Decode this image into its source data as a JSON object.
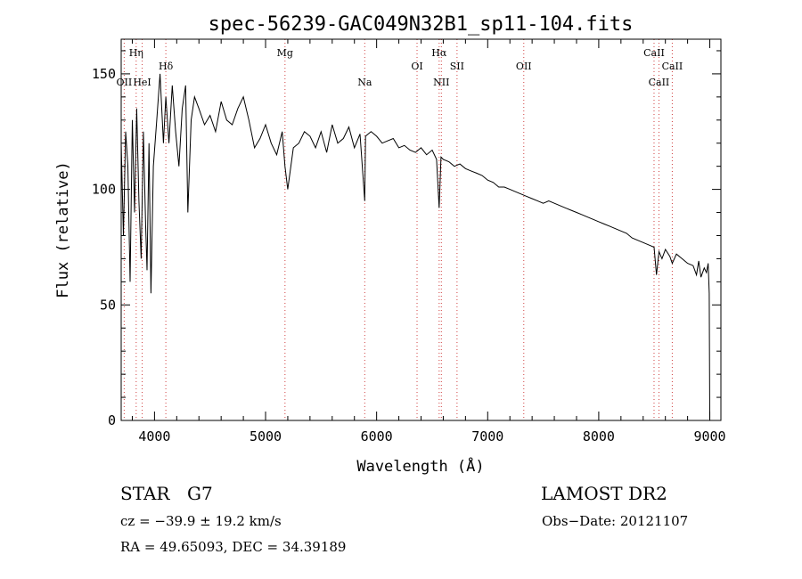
{
  "chart_data": {
    "type": "line",
    "title": "spec-56239-GAC049N32B1_sp11-104.fits",
    "xlabel": "Wavelength (Å)",
    "ylabel": "Flux (relative)",
    "xlim": [
      3700,
      9100
    ],
    "ylim": [
      0,
      165
    ],
    "xticks": [
      4000,
      5000,
      6000,
      7000,
      8000,
      9000
    ],
    "yticks": [
      0,
      50,
      100,
      150
    ],
    "grid": false,
    "series": [
      {
        "x": [
          3700,
          3720,
          3740,
          3760,
          3780,
          3800,
          3820,
          3840,
          3860,
          3880,
          3900,
          3920,
          3933,
          3950,
          3968,
          3990,
          4020,
          4050,
          4080,
          4102,
          4130,
          4160,
          4190,
          4220,
          4250,
          4280,
          4300,
          4330,
          4360,
          4400,
          4450,
          4500,
          4550,
          4600,
          4650,
          4700,
          4750,
          4800,
          4850,
          4900,
          4950,
          5000,
          5050,
          5100,
          5150,
          5175,
          5200,
          5250,
          5300,
          5350,
          5400,
          5450,
          5500,
          5550,
          5600,
          5650,
          5700,
          5750,
          5800,
          5850,
          5893,
          5900,
          5950,
          6000,
          6050,
          6100,
          6150,
          6200,
          6250,
          6300,
          6350,
          6400,
          6450,
          6500,
          6540,
          6563,
          6580,
          6600,
          6650,
          6700,
          6750,
          6800,
          6850,
          6900,
          6950,
          7000,
          7050,
          7100,
          7150,
          7200,
          7250,
          7300,
          7350,
          7400,
          7450,
          7500,
          7550,
          7600,
          7650,
          7700,
          7750,
          7800,
          7850,
          7900,
          7950,
          8000,
          8050,
          8100,
          8150,
          8200,
          8250,
          8300,
          8350,
          8400,
          8450,
          8498,
          8520,
          8542,
          8570,
          8600,
          8640,
          8662,
          8700,
          8750,
          8800,
          8850,
          8880,
          8900,
          8920,
          8950,
          8970,
          8985,
          8995,
          9000
        ],
        "y": [
          120,
          80,
          125,
          110,
          60,
          130,
          90,
          135,
          95,
          70,
          125,
          85,
          65,
          120,
          55,
          110,
          130,
          150,
          120,
          140,
          120,
          145,
          125,
          110,
          135,
          145,
          90,
          130,
          140,
          135,
          128,
          132,
          125,
          138,
          130,
          128,
          135,
          140,
          130,
          118,
          122,
          128,
          120,
          115,
          125,
          110,
          100,
          118,
          120,
          125,
          123,
          118,
          125,
          116,
          128,
          120,
          122,
          127,
          118,
          124,
          95,
          123,
          125,
          123,
          120,
          121,
          122,
          118,
          119,
          117,
          116,
          118,
          115,
          117,
          113,
          92,
          114,
          113,
          112,
          110,
          111,
          109,
          108,
          107,
          106,
          104,
          103,
          101,
          101,
          100,
          99,
          98,
          97,
          96,
          95,
          94,
          95,
          94,
          93,
          92,
          91,
          90,
          89,
          88,
          87,
          86,
          85,
          84,
          83,
          82,
          81,
          79,
          78,
          77,
          76,
          75,
          63,
          73,
          70,
          74,
          71,
          68,
          72,
          70,
          68,
          67,
          63,
          69,
          62,
          66,
          64,
          68,
          55,
          0
        ]
      }
    ],
    "lines": [
      {
        "label": "Hη",
        "x": 3835,
        "row": 0
      },
      {
        "label": "OII",
        "x": 3727,
        "row": 2
      },
      {
        "label": "HeI",
        "x": 3889,
        "row": 2
      },
      {
        "label": "Hδ",
        "x": 4102,
        "row": 1
      },
      {
        "label": "Mg",
        "x": 5175,
        "row": 0
      },
      {
        "label": "Na",
        "x": 5893,
        "row": 2
      },
      {
        "label": "OI",
        "x": 6364,
        "row": 1
      },
      {
        "label": "Hα",
        "x": 6563,
        "row": 0
      },
      {
        "label": "NII",
        "x": 6583,
        "row": 2
      },
      {
        "label": "SII",
        "x": 6724,
        "row": 1
      },
      {
        "label": "OII",
        "x": 7325,
        "row": 1
      },
      {
        "label": "CaII",
        "x": 8498,
        "row": 0
      },
      {
        "label": "CaII",
        "x": 8542,
        "row": 2
      },
      {
        "label": "CaII",
        "x": 8662,
        "row": 1
      }
    ]
  },
  "info": {
    "object_class": "STAR",
    "subclass": "G7",
    "survey": "LAMOST DR2",
    "redshift": "cz = −39.9 ± 19.2 km/s",
    "obs_date": "Obs−Date: 20121107",
    "coords": "RA =  49.65093, DEC =  34.39189"
  }
}
